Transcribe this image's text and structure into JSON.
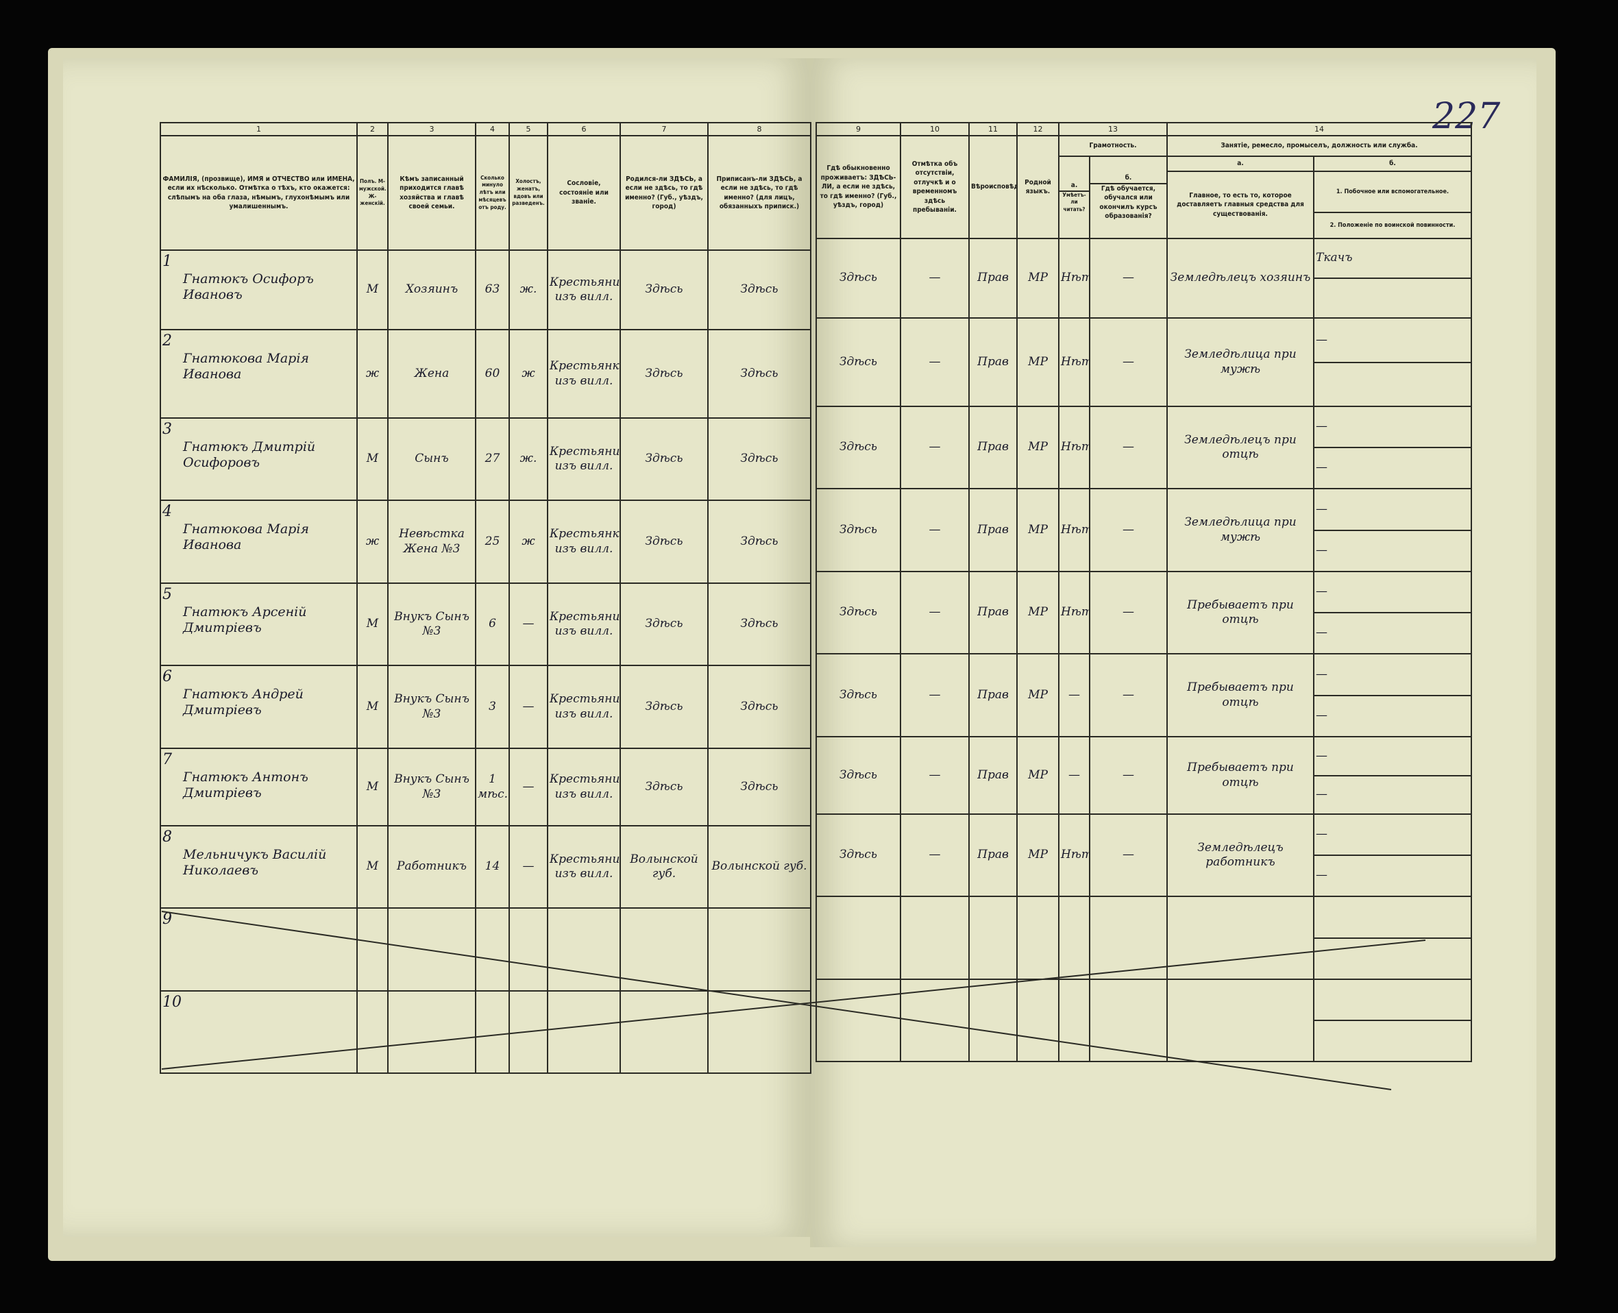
{
  "page_number": "227",
  "left_headers": {
    "numbers": [
      "1",
      "2",
      "3",
      "4",
      "5",
      "6",
      "7",
      "8"
    ],
    "col1": "ФАМИЛІЯ, (прозвище), ИМЯ и ОТЧЕСТВО или ИМЕНА, если их нѣсколько. Отмѣтка о тѣхъ, кто окажется: слѣпымъ на оба глаза, нѣмымъ, глухонѣмымъ или умалишеннымъ.",
    "col2": "Полъ. М-мужской. Ж-женскій.",
    "col3": "Кѣмъ записанный приходится главѣ хозяйства и главѣ своей семьи.",
    "col4": "Сколько минуло лѣтъ или мѣсяцевъ отъ роду.",
    "col5": "Холостъ, женатъ, вдовъ или разведенъ.",
    "col6": "Сословіе, состояніе или званіе.",
    "col7": "Родился-ли ЗДѢСЬ, а если не здѣсь, то гдѣ именно? (Губ., уѣздъ, город)",
    "col8": "Приписанъ-ли ЗДѢСЬ, а если не здѣсь, то гдѣ именно? (для лицъ, обязанныхъ приписк.)"
  },
  "right_headers": {
    "numbers": [
      "9",
      "10",
      "11",
      "12",
      "13",
      "14"
    ],
    "col9": "Гдѣ обыкновенно проживаетъ: ЗДѢСЬ-ЛИ, а если не здѣсь, то гдѣ именно? (Губ., уѣздъ, город)",
    "col10": "Отмѣтка объ отсутствіи, отлучкѣ и о временномъ здѣсь пребываніи.",
    "col11": "Вѣроисповѣданіе.",
    "col12": "Родной языкъ.",
    "col13": "Грамотность.",
    "col13a_letter": "а.",
    "col13b_letter": "б.",
    "col13a": "Умѣетъ-ли читать?",
    "col13b": "Гдѣ обучается, обучался или окончилъ курсъ образованія?",
    "col14": "Занятіе, ремесло, промыселъ, должность или служба.",
    "col14a_letter": "а.",
    "col14b_letter": "б.",
    "col14a": "Главное, то есть то, которое доставляетъ главныя средства для существованія.",
    "col14b_1": "1. Побочное или вспомогательное.",
    "col14b_2": "2. Положеніе по воинской повинности."
  },
  "rows": [
    {
      "num": "1",
      "name": "Гнатюкъ Осифоръ Ивановъ",
      "sex": "М",
      "relation": "Хозяинъ",
      "age": "63",
      "marital": "ж.",
      "estate": "Крестьянинъ изъ вилл.",
      "born": "Здѣсь",
      "registered": "Здѣсь",
      "residence": "Здѣсь",
      "absence": "—",
      "religion": "Прав",
      "language": "МР",
      "literate": "Нѣтъ",
      "schooling": "—",
      "occupation": "Земледѣлецъ хозяинъ",
      "side1": "Ткачъ",
      "side2": ""
    },
    {
      "num": "2",
      "name": "Гнатюкова Марія Иванова",
      "sex": "ж",
      "relation": "Жена",
      "age": "60",
      "marital": "ж",
      "estate": "Крестьянка изъ вилл.",
      "born": "Здѣсь",
      "registered": "Здѣсь",
      "residence": "Здѣсь",
      "absence": "—",
      "religion": "Прав",
      "language": "МР",
      "literate": "Нѣтъ",
      "schooling": "—",
      "occupation": "Земледѣлица при мужѣ",
      "side1": "—",
      "side2": ""
    },
    {
      "num": "3",
      "name": "Гнатюкъ Дмитрій Осифоровъ",
      "sex": "М",
      "relation": "Сынъ",
      "age": "27",
      "marital": "ж.",
      "estate": "Крестьянинъ изъ вилл.",
      "born": "Здѣсь",
      "registered": "Здѣсь",
      "residence": "Здѣсь",
      "absence": "—",
      "religion": "Прав",
      "language": "МР",
      "literate": "Нѣтъ",
      "schooling": "—",
      "occupation": "Земледѣлецъ при отцѣ",
      "side1": "—",
      "side2": "—"
    },
    {
      "num": "4",
      "name": "Гнатюкова Марія Иванова",
      "sex": "ж",
      "relation": "Невѣстка Жена №3",
      "age": "25",
      "marital": "ж",
      "estate": "Крестьянка изъ вилл.",
      "born": "Здѣсь",
      "registered": "Здѣсь",
      "residence": "Здѣсь",
      "absence": "—",
      "religion": "Прав",
      "language": "МР",
      "literate": "Нѣтъ",
      "schooling": "—",
      "occupation": "Земледѣлица при мужѣ",
      "side1": "—",
      "side2": "—"
    },
    {
      "num": "5",
      "name": "Гнатюкъ Арсеній Дмитріевъ",
      "sex": "М",
      "relation": "Внукъ Сынъ №3",
      "age": "6",
      "marital": "—",
      "estate": "Крестьянинъ изъ вилл.",
      "born": "Здѣсь",
      "registered": "Здѣсь",
      "residence": "Здѣсь",
      "absence": "—",
      "religion": "Прав",
      "language": "МР",
      "literate": "Нѣтъ",
      "schooling": "—",
      "occupation": "Пребываетъ при отцѣ",
      "side1": "—",
      "side2": "—"
    },
    {
      "num": "6",
      "name": "Гнатюкъ Андрей Дмитріевъ",
      "sex": "М",
      "relation": "Внукъ Сынъ №3",
      "age": "3",
      "marital": "—",
      "estate": "Крестьянинъ изъ вилл.",
      "born": "Здѣсь",
      "registered": "Здѣсь",
      "residence": "Здѣсь",
      "absence": "—",
      "religion": "Прав",
      "language": "МР",
      "literate": "—",
      "schooling": "—",
      "occupation": "Пребываетъ при отцѣ",
      "side1": "—",
      "side2": "—"
    },
    {
      "num": "7",
      "name": "Гнатюкъ Антонъ Дмитріевъ",
      "sex": "М",
      "relation": "Внукъ Сынъ №3",
      "age": "1 мѣс.",
      "marital": "—",
      "estate": "Крестьянинъ изъ вилл.",
      "born": "Здѣсь",
      "registered": "Здѣсь",
      "residence": "Здѣсь",
      "absence": "—",
      "religion": "Прав",
      "language": "МР",
      "literate": "—",
      "schooling": "—",
      "occupation": "Пребываетъ при отцѣ",
      "side1": "—",
      "side2": "—"
    },
    {
      "num": "8",
      "name": "Мельничукъ Василій Николаевъ",
      "sex": "М",
      "relation": "Работникъ",
      "age": "14",
      "marital": "—",
      "estate": "Крестьянинъ изъ вилл.",
      "born": "Волынской губ.",
      "registered": "Волынской губ.",
      "residence": "Здѣсь",
      "absence": "—",
      "religion": "Прав",
      "language": "МР",
      "literate": "Нѣтъ",
      "schooling": "—",
      "occupation": "Земледѣлецъ работникъ",
      "side1": "—",
      "side2": "—"
    },
    {
      "num": "9",
      "name": "",
      "sex": "",
      "relation": "",
      "age": "",
      "marital": "",
      "estate": "",
      "born": "",
      "registered": "",
      "residence": "",
      "absence": "",
      "religion": "",
      "language": "",
      "literate": "",
      "schooling": "",
      "occupation": "",
      "side1": "",
      "side2": ""
    },
    {
      "num": "10",
      "name": "",
      "sex": "",
      "relation": "",
      "age": "",
      "marital": "",
      "estate": "",
      "born": "",
      "registered": "",
      "residence": "",
      "absence": "",
      "religion": "",
      "language": "",
      "literate": "",
      "schooling": "",
      "occupation": "",
      "side1": "",
      "side2": ""
    }
  ],
  "colors": {
    "background": "#050505",
    "paper": "#e6e6c9",
    "ink": "#1c1c18"
  }
}
